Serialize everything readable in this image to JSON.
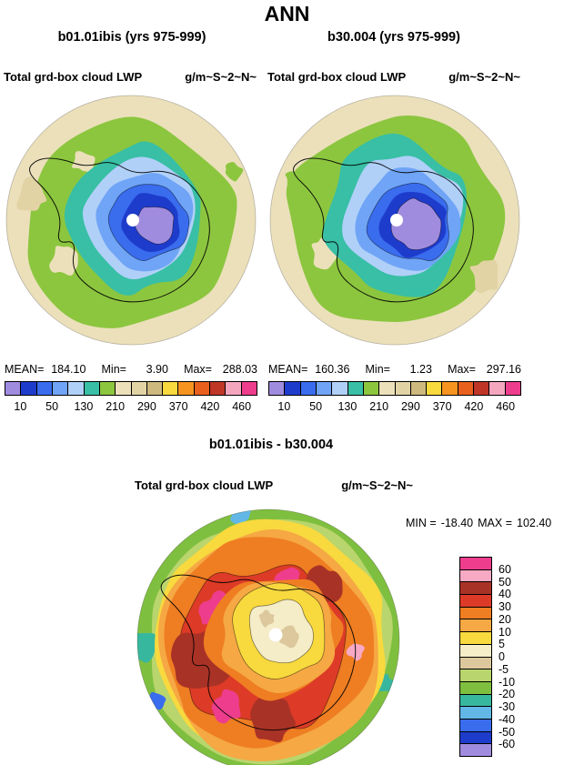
{
  "title": "ANN",
  "panels": [
    {
      "title": "b01.01ibis (yrs 975-999)",
      "field": "Total grd-box cloud LWP",
      "units": "g/m~S~2~N~",
      "stats": {
        "mean_label": "MEAN=",
        "mean": "184.10",
        "min_label": "Min=",
        "min": "3.90",
        "max_label": "Max=",
        "max": "288.03"
      },
      "ticks": [
        "10",
        "50",
        "130",
        "210",
        "290",
        "370",
        "420",
        "460"
      ]
    },
    {
      "title": "b30.004 (yrs 975-999)",
      "field": "Total grd-box cloud LWP",
      "units": "g/m~S~2~N~",
      "stats": {
        "mean_label": "MEAN=",
        "mean": "160.36",
        "min_label": "Min=",
        "min": "1.23",
        "max_label": "Max=",
        "max": "297.16"
      },
      "ticks": [
        "10",
        "50",
        "130",
        "210",
        "290",
        "370",
        "420",
        "460"
      ]
    }
  ],
  "diff": {
    "title": "b01.01ibis - b30.004",
    "field": "Total grd-box cloud LWP",
    "units": "g/m~S~2~N~",
    "min_label": "MIN =",
    "min": "-18.40",
    "max_label": "MAX =",
    "max": "102.40",
    "ticks": [
      "60",
      "50",
      "40",
      "30",
      "20",
      "10",
      "5",
      "0",
      "-5",
      "-10",
      "-20",
      "-30",
      "-40",
      "-50",
      "-60"
    ]
  },
  "colors": {
    "lwp_palette": [
      "#a08cdf",
      "#1e3ccc",
      "#3a6cee",
      "#6fa4f6",
      "#b0d0f8",
      "#38bfa5",
      "#8cc63f",
      "#ece0bb",
      "#e2d3a4",
      "#cdb97e",
      "#f8d93e",
      "#f79420",
      "#e8601c",
      "#bf3626",
      "#f4a6bf",
      "#ee3d8d"
    ],
    "diff_palette": [
      "#ee3d8d",
      "#f8a9c4",
      "#a93226",
      "#dd3b27",
      "#ef7d22",
      "#f5a843",
      "#f8d93e",
      "#f5ecc8",
      "#dcc89c",
      "#b9d56d",
      "#7fbf3f",
      "#38b79f",
      "#62b7e6",
      "#3a6cee",
      "#1e3ccc",
      "#a08cdf"
    ],
    "land_outline": "#000000",
    "pole_dot": "#ffffff",
    "background": "#ffffff"
  },
  "chart_data": [
    {
      "type": "heatmap",
      "projection": "south-polar",
      "title": "b01.01ibis (yrs 975-999)",
      "variable": "Total grd-box cloud LWP",
      "units": "g/m~S~2~N~",
      "mean": 184.1,
      "min": 3.9,
      "max": 288.03,
      "contour_levels": [
        10,
        50,
        130,
        210,
        290,
        370,
        420,
        460
      ],
      "palette_order": "purple(low) -> blues -> teal -> green -> beige -> yellow -> orange -> red -> pink -> magenta(high)",
      "legend_position": "bottom",
      "notes": "low LWP (purple/blue) centered over Antarctic plateau, beige mid values over surrounding ocean"
    },
    {
      "type": "heatmap",
      "projection": "south-polar",
      "title": "b30.004 (yrs 975-999)",
      "variable": "Total grd-box cloud LWP",
      "units": "g/m~S~2~N~",
      "mean": 160.36,
      "min": 1.23,
      "max": 297.16,
      "contour_levels": [
        10,
        50,
        130,
        210,
        290,
        370,
        420,
        460
      ],
      "legend_position": "bottom",
      "notes": "same palette, larger low-value (purple) core than b01.01ibis"
    },
    {
      "type": "heatmap",
      "projection": "south-polar",
      "title": "b01.01ibis - b30.004",
      "variable": "Total grd-box cloud LWP",
      "units": "g/m~S~2~N~",
      "min": -18.4,
      "max": 102.4,
      "contour_levels": [
        60,
        50,
        40,
        30,
        20,
        10,
        5,
        0,
        -5,
        -10,
        -20,
        -30,
        -40,
        -50,
        -60
      ],
      "legend_position": "right",
      "notes": "mostly positive differences (orange/red/pink ring) with near-zero beige core and green/teal negative patches at rim"
    }
  ]
}
